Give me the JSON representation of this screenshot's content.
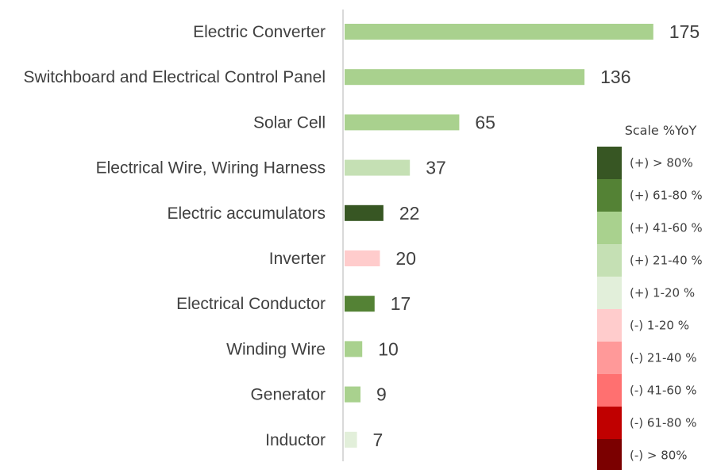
{
  "chart_data": {
    "type": "bar",
    "orientation": "horizontal",
    "title": "",
    "xlabel": "",
    "ylabel": "",
    "categories": [
      "Electric Converter",
      "Switchboard and Electrical Control Panel",
      "Solar Cell",
      "Electrical Wire, Wiring Harness",
      "Electric accumulators",
      "Inverter",
      "Electrical Conductor",
      "Winding Wire",
      "Generator",
      "Inductor"
    ],
    "values": [
      175,
      136,
      65,
      37,
      22,
      20,
      17,
      10,
      9,
      7
    ],
    "bar_colors": [
      "#a9d18e",
      "#a9d18e",
      "#a9d18e",
      "#c5e0b4",
      "#375623",
      "#ffcccc",
      "#548235",
      "#a9d18e",
      "#a9d18e",
      "#e2efda"
    ],
    "xlim": [
      0,
      185
    ],
    "grid": false,
    "legend": {
      "title": "Scale %YoY",
      "placement": "right",
      "items": [
        {
          "label": "(+) > 80%",
          "color": "#375623"
        },
        {
          "label": "(+) 61-80 %",
          "color": "#548235"
        },
        {
          "label": "(+) 41-60 %",
          "color": "#a9d18e"
        },
        {
          "label": "(+) 21-40 %",
          "color": "#c5e0b4"
        },
        {
          "label": "(+) 1-20 %",
          "color": "#e2efda"
        },
        {
          "label": "(-) 1-20 %",
          "color": "#ffcccc"
        },
        {
          "label": "(-) 21-40 %",
          "color": "#ff9999"
        },
        {
          "label": "(-) 41-60 %",
          "color": "#ff7070"
        },
        {
          "label": "(-) 61-80 %",
          "color": "#c00000"
        },
        {
          "label": "(-) > 80%",
          "color": "#7b0000"
        }
      ]
    }
  }
}
